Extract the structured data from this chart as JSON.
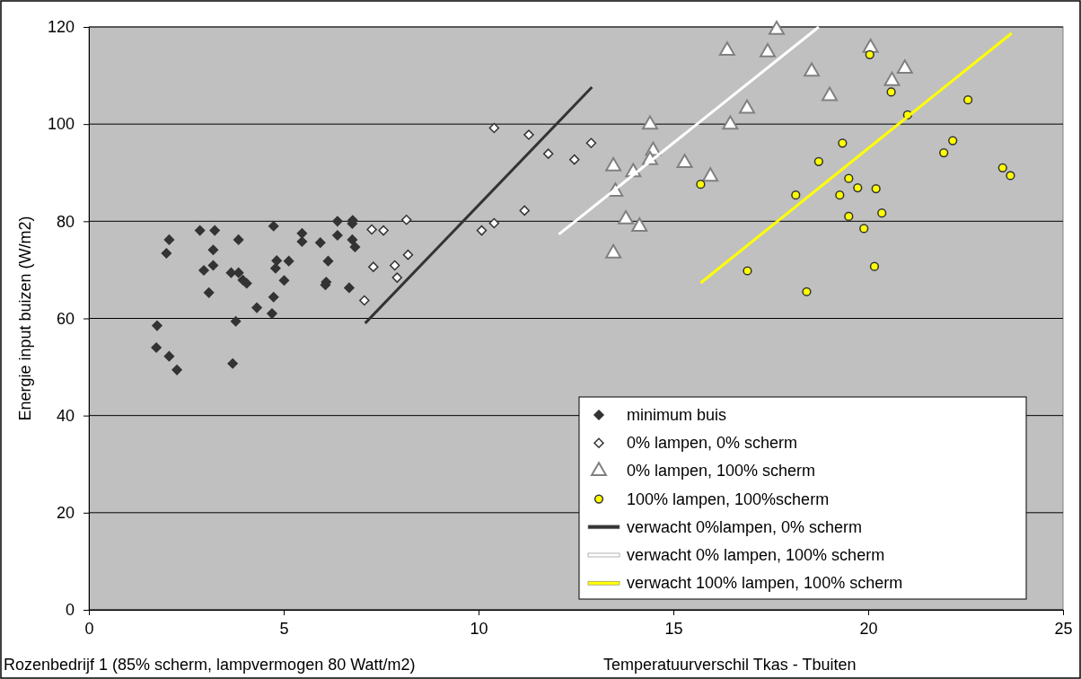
{
  "chart_data": {
    "type": "scatter",
    "xlabel": "Temperatuurverschil Tkas - Tbuiten",
    "ylabel": "Energie input buizen (W/m2)",
    "annotations": [
      "Rozenbedrijf 1 (85% scherm, lampvermogen 80 Watt/m2)"
    ],
    "xlim": [
      0,
      25
    ],
    "xticks": [
      0,
      5,
      10,
      15,
      20,
      25
    ],
    "ylim": [
      0,
      120
    ],
    "yticks": [
      0,
      20,
      40,
      60,
      80,
      100,
      120
    ],
    "grid": "y",
    "legend": "bottom right",
    "series": [
      {
        "name": "minimum buis",
        "marker": "diamond",
        "color": "#333333",
        "x": [
          2.06,
          1.99,
          2.85,
          3.23,
          3.19,
          2.95,
          3.19,
          3.84,
          3.65,
          3.84,
          3.95,
          4.05,
          3.08,
          4.74,
          4.82,
          4.79,
          5.13,
          5.01,
          4.74,
          4.31,
          4.7,
          3.77,
          1.75,
          1.73,
          2.06,
          2.26,
          3.69,
          5.47,
          5.47,
          5.94,
          6.38,
          6.77,
          6.76,
          6.38,
          6.76,
          6.83,
          6.14,
          6.09,
          6.07,
          6.68
        ],
        "values": [
          76.2,
          73.4,
          78.1,
          78.1,
          74.1,
          69.9,
          70.9,
          76.2,
          69.4,
          69.4,
          67.9,
          67.2,
          65.3,
          79,
          71.9,
          70.3,
          71.8,
          67.8,
          64.4,
          62.2,
          61,
          59.4,
          58.5,
          54,
          52.2,
          49.4,
          50.7,
          77.5,
          75.8,
          75.6,
          80,
          80.2,
          79.5,
          77.1,
          76.2,
          74.7,
          71.8,
          67.5,
          66.9,
          66.3
        ]
      },
      {
        "name": "0% lampen, 0% scherm",
        "marker": "diamond",
        "color": "#ffffff",
        "x": [
          7.26,
          7.56,
          8.15,
          8.19,
          7.3,
          7.85,
          7.91,
          7.07,
          10.4,
          11.29,
          11.79,
          12.46,
          12.89,
          11.18,
          10.4,
          10.08
        ],
        "values": [
          78.3,
          78.1,
          80.3,
          73.1,
          70.6,
          70.9,
          68.4,
          63.7,
          99.2,
          97.8,
          93.9,
          92.7,
          96.1,
          82.2,
          79.6,
          78.1
        ]
      },
      {
        "name": "0% lampen, 100% scherm",
        "marker": "triangle",
        "color": "#ffffff",
        "x": [
          17.65,
          16.38,
          17.42,
          20.06,
          18.55,
          20.94,
          20.61,
          19.01,
          16.89,
          16.46,
          14.4,
          14.48,
          14.4,
          13.46,
          13.97,
          15.29,
          15.95,
          13.51,
          13.78,
          14.13,
          13.46
        ],
        "values": [
          119.4,
          115.1,
          114.8,
          115.7,
          110.8,
          111.4,
          108.9,
          105.8,
          103.2,
          99.9,
          99.9,
          94.5,
          92.6,
          91.3,
          90.1,
          92,
          89.2,
          86.1,
          80.4,
          78.9,
          73.4
        ]
      },
      {
        "name": "100% lampen, 100%scherm",
        "marker": "circle",
        "color": "#ffff00",
        "x": [
          20.04,
          20.59,
          22.56,
          21.01,
          19.34,
          22.17,
          21.94,
          18.73,
          23.45,
          23.65,
          15.7,
          19.5,
          19.73,
          20.2,
          18.14,
          19.27,
          20.35,
          19.5,
          19.89,
          16.9,
          20.16,
          18.42
        ],
        "values": [
          114.3,
          106.6,
          105,
          101.9,
          96.1,
          96.6,
          94.1,
          92.3,
          91,
          89.4,
          87.6,
          88.8,
          86.9,
          86.7,
          85.4,
          85.4,
          81.7,
          81,
          78.5,
          69.8,
          70.7,
          65.5
        ]
      },
      {
        "name": "verwacht 0%lampen, 0% scherm",
        "type": "line",
        "marker": "none",
        "color": "#333333",
        "x": [
          7.09,
          12.91
        ],
        "values": [
          59,
          107.6
        ]
      },
      {
        "name": "verwacht 0% lampen, 100% scherm",
        "type": "line",
        "marker": "none",
        "color": "#ffffff",
        "x": [
          12.06,
          18.73
        ],
        "values": [
          77.3,
          120
        ]
      },
      {
        "name": "verwacht 100% lampen, 100% scherm",
        "type": "line",
        "marker": "none",
        "color": "#ffff00",
        "x": [
          15.7,
          23.68
        ],
        "values": [
          67.3,
          118.7
        ]
      }
    ]
  }
}
